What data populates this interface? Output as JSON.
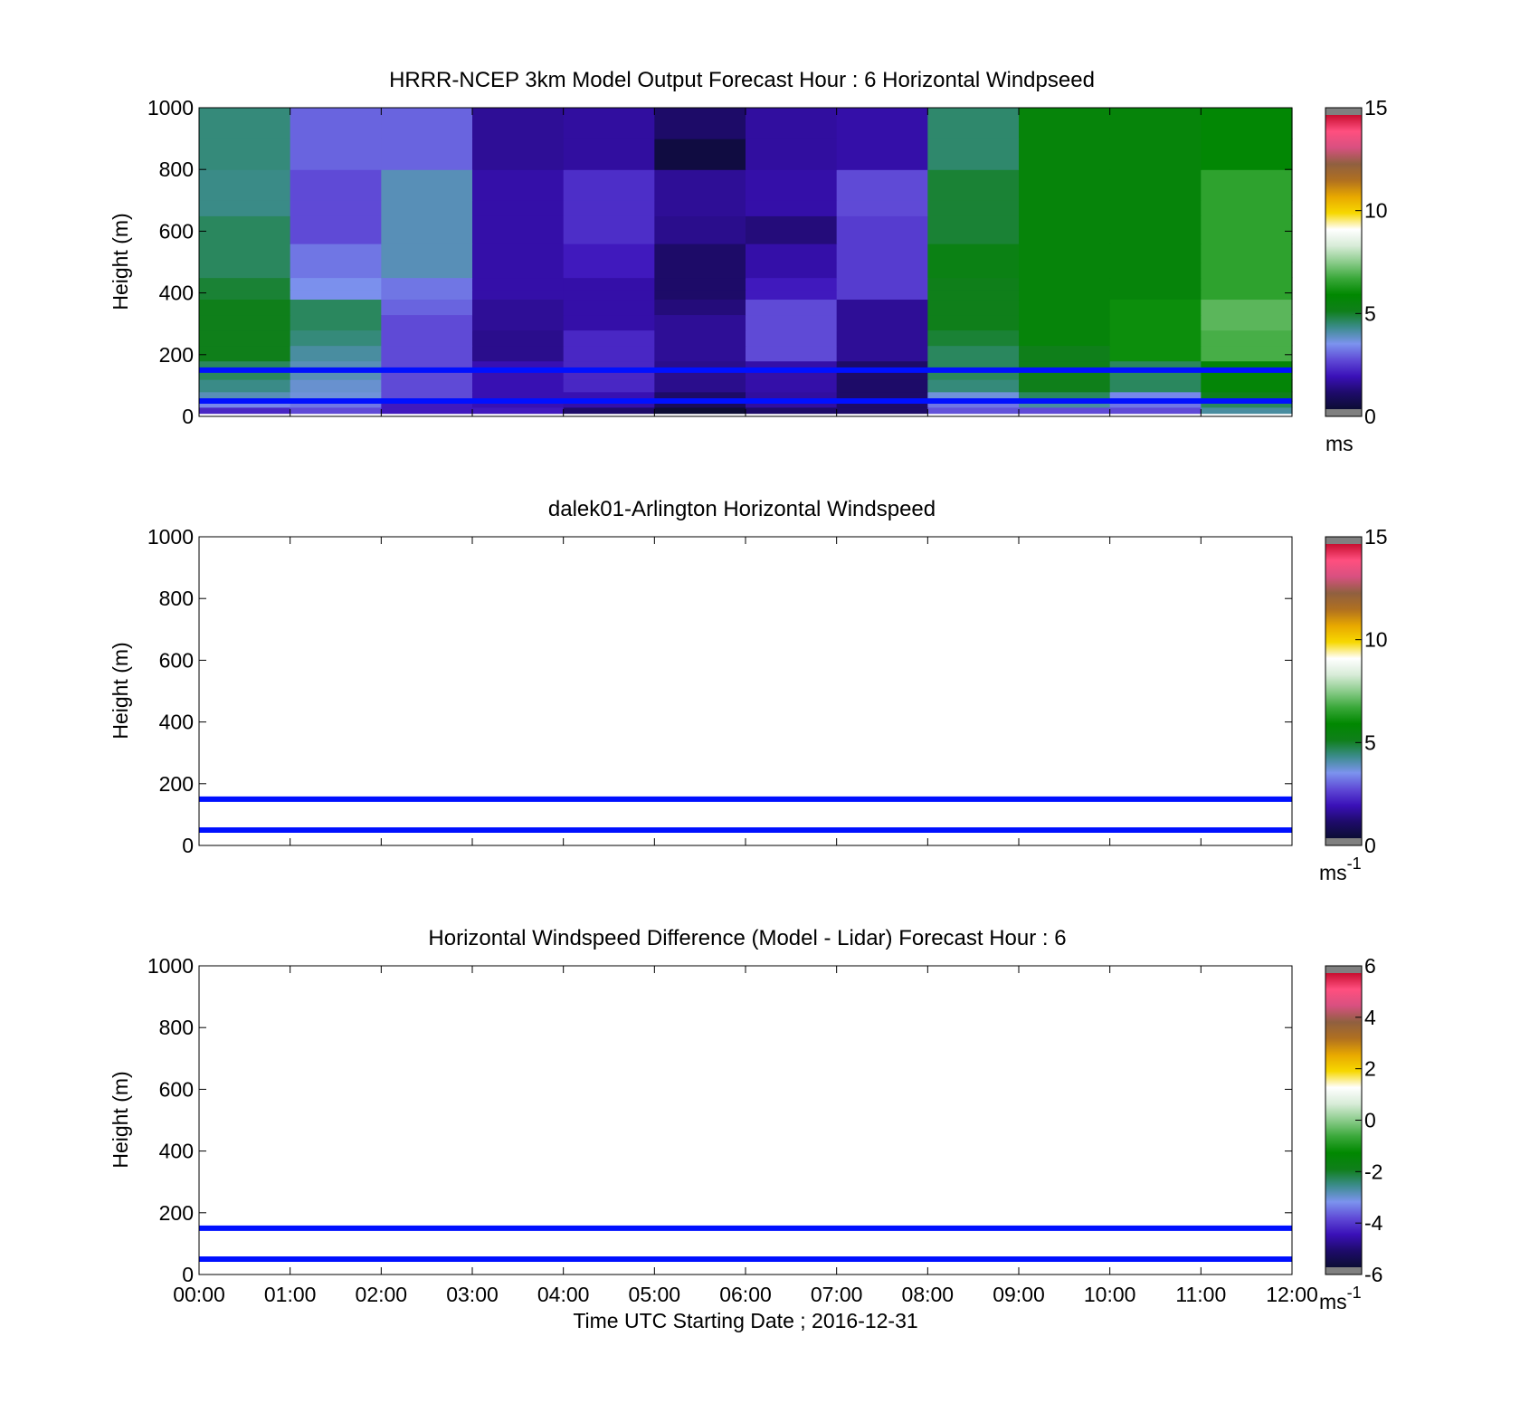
{
  "chart_data": [
    {
      "type": "heatmap",
      "title": "HRRR-NCEP 3km Model Output   Forecast Hour : 6 Horizontal Windpseed",
      "xlabel": "",
      "ylabel": "Height (m)",
      "xlim": [
        0,
        12
      ],
      "ylim": [
        0,
        1000
      ],
      "x_ticks": [
        0,
        1,
        2,
        3,
        4,
        5,
        6,
        7,
        8,
        9,
        10,
        11,
        12
      ],
      "x_tick_labels": [],
      "y_ticks": [
        0,
        200,
        400,
        600,
        800,
        1000
      ],
      "y_tick_labels": [
        "0",
        "200",
        "400",
        "600",
        "800",
        "1000"
      ],
      "colorbar": {
        "min": 0,
        "max": 15,
        "ticks": [
          0,
          5,
          10,
          15
        ],
        "tick_labels": [
          "0",
          "5",
          "10",
          "15"
        ],
        "units": "ms",
        "units_sup": "",
        "colors": [
          "#808080",
          "#0c0c34",
          "#1e0b6a",
          "#3a10b8",
          "#5f4ad6",
          "#7c93ee",
          "#3c8c8c",
          "#0f7f1a",
          "#008800",
          "#3aa83a",
          "#8ccc8c",
          "#d8ecd8",
          "#ffffff",
          "#f7d800",
          "#e8a800",
          "#b07020",
          "#906040",
          "#d85080",
          "#ff4f7f",
          "#c80f30",
          "#808080"
        ]
      },
      "reference_lines": [
        50,
        150
      ],
      "grid": false,
      "x_edges": [
        0,
        1,
        2,
        3,
        4,
        5,
        6,
        7,
        8,
        9,
        10,
        11,
        12
      ],
      "y_edges": [
        10,
        30,
        50,
        80,
        120,
        180,
        230,
        280,
        330,
        380,
        410,
        450,
        500,
        560,
        600,
        650,
        700,
        800,
        900,
        1000
      ],
      "z": [
        [
          2,
          2.5,
          1.8,
          1.8,
          0.8,
          0,
          0.8,
          0.8,
          2.6,
          2.5,
          2.5,
          4
        ],
        [
          3.2,
          3,
          1.8,
          1.6,
          1.5,
          0.6,
          1.4,
          0.8,
          3,
          4,
          3,
          4.5
        ],
        [
          3.8,
          3.5,
          2.5,
          1.6,
          1.6,
          0.8,
          1.4,
          0.8,
          3.5,
          4.5,
          3.2,
          5
        ],
        [
          4.2,
          3.6,
          2.5,
          1.6,
          2,
          1.2,
          1.5,
          0.8,
          4.3,
          5,
          4.5,
          5.6
        ],
        [
          4.5,
          3.8,
          2.5,
          1.6,
          2,
          1.2,
          1.5,
          0.8,
          4.5,
          5,
          4.5,
          5.6
        ],
        [
          5,
          4,
          2.5,
          1.2,
          2,
          1.3,
          2.5,
          1.3,
          4.5,
          5,
          6,
          6.8
        ],
        [
          5,
          4.3,
          2.5,
          1.2,
          2,
          1.3,
          2.5,
          1.3,
          4.8,
          5.5,
          6,
          6.8
        ],
        [
          5,
          4.5,
          2.5,
          1.3,
          1.5,
          1.3,
          2.5,
          1.3,
          5,
          5.5,
          6,
          7
        ],
        [
          5,
          4.5,
          2.8,
          1.3,
          1.5,
          1,
          2.5,
          1.3,
          5,
          5.5,
          6,
          7
        ],
        [
          4.8,
          3.3,
          3,
          1.5,
          1.5,
          0.8,
          1.8,
          2.3,
          5,
          5.5,
          5.5,
          6.5
        ],
        [
          4.8,
          3.3,
          3,
          1.5,
          1.5,
          0.8,
          1.8,
          2.3,
          5,
          5.5,
          5.5,
          6.5
        ],
        [
          4.5,
          3,
          3.8,
          1.5,
          1.8,
          0.8,
          1.5,
          2.3,
          5.2,
          5.5,
          5.5,
          6.5
        ],
        [
          4.5,
          3,
          3.8,
          1.5,
          1.8,
          0.8,
          1.5,
          2.3,
          5.2,
          5.5,
          5.5,
          6.5
        ],
        [
          4.5,
          2.5,
          3.8,
          1.5,
          2.1,
          1.2,
          1.0,
          2.3,
          4.8,
          5.5,
          5.5,
          6.5
        ],
        [
          4.5,
          2.5,
          3.8,
          1.5,
          2.1,
          1.2,
          1.0,
          2.3,
          4.8,
          5.5,
          5.5,
          6.5
        ],
        [
          4.2,
          2.5,
          3.8,
          1.5,
          2.1,
          1.3,
          1.5,
          2.5,
          4.8,
          5.5,
          5.5,
          6.5
        ],
        [
          4.2,
          2.5,
          3.8,
          1.5,
          2.1,
          1.3,
          1.5,
          2.5,
          4.8,
          5.5,
          5.5,
          6.5
        ],
        [
          4.3,
          2.8,
          2.8,
          1.3,
          1.4,
          0.2,
          1.4,
          1.5,
          4.4,
          5.5,
          5.5,
          5.7
        ],
        [
          4.3,
          2.8,
          2.8,
          1.3,
          1.4,
          0.8,
          1.4,
          1.5,
          4.4,
          5.5,
          5.5,
          5.7
        ]
      ]
    },
    {
      "type": "heatmap",
      "title": "dalek01-Arlington  Horizontal Windspeed",
      "xlabel": "",
      "ylabel": "Height (m)",
      "xlim": [
        0,
        12
      ],
      "ylim": [
        0,
        1000
      ],
      "x_ticks": [
        0,
        1,
        2,
        3,
        4,
        5,
        6,
        7,
        8,
        9,
        10,
        11,
        12
      ],
      "x_tick_labels": [],
      "y_ticks": [
        0,
        200,
        400,
        600,
        800,
        1000
      ],
      "y_tick_labels": [
        "0",
        "200",
        "400",
        "600",
        "800",
        "1000"
      ],
      "colorbar": {
        "min": 0,
        "max": 15,
        "ticks": [
          0,
          5,
          10,
          15
        ],
        "tick_labels": [
          "0",
          "5",
          "10",
          "15"
        ],
        "units": "ms",
        "units_sup": "-1",
        "colors": [
          "#808080",
          "#0c0c34",
          "#1e0b6a",
          "#3a10b8",
          "#5f4ad6",
          "#7c93ee",
          "#3c8c8c",
          "#0f7f1a",
          "#008800",
          "#3aa83a",
          "#8ccc8c",
          "#d8ecd8",
          "#ffffff",
          "#f7d800",
          "#e8a800",
          "#b07020",
          "#906040",
          "#d85080",
          "#ff4f7f",
          "#c80f30",
          "#808080"
        ]
      },
      "reference_lines": [
        50,
        150
      ],
      "grid": false,
      "x_edges": [],
      "y_edges": [],
      "z": []
    },
    {
      "type": "heatmap",
      "title": "Horizontal Windspeed Difference (Model - Lidar) Forecast Hour : 6",
      "xlabel": "Time UTC  Starting Date ; 2016-12-31",
      "ylabel": "Height (m)",
      "xlim": [
        0,
        12
      ],
      "ylim": [
        0,
        1000
      ],
      "x_ticks": [
        0,
        1,
        2,
        3,
        4,
        5,
        6,
        7,
        8,
        9,
        10,
        11,
        12
      ],
      "x_tick_labels": [
        "00:00",
        "01:00",
        "02:00",
        "03:00",
        "04:00",
        "05:00",
        "06:00",
        "07:00",
        "08:00",
        "09:00",
        "10:00",
        "11:00",
        "12:00"
      ],
      "y_ticks": [
        0,
        200,
        400,
        600,
        800,
        1000
      ],
      "y_tick_labels": [
        "0",
        "200",
        "400",
        "600",
        "800",
        "1000"
      ],
      "colorbar": {
        "min": -6,
        "max": 6,
        "ticks": [
          -6,
          -4,
          -2,
          0,
          2,
          4,
          6
        ],
        "tick_labels": [
          "-6",
          "-4",
          "-2",
          "0",
          "2",
          "4",
          "6"
        ],
        "units": "ms",
        "units_sup": "-1",
        "colors": [
          "#808080",
          "#0c0c34",
          "#1e0b6a",
          "#3a10b8",
          "#5f4ad6",
          "#7c93ee",
          "#3c8c8c",
          "#0f7f1a",
          "#008800",
          "#3aa83a",
          "#8ccc8c",
          "#d8ecd8",
          "#ffffff",
          "#f7d800",
          "#e8a800",
          "#b07020",
          "#906040",
          "#d85080",
          "#ff4f7f",
          "#c80f30",
          "#808080"
        ]
      },
      "reference_lines": [
        50,
        150
      ],
      "grid": false,
      "x_edges": [],
      "y_edges": [],
      "z": []
    }
  ]
}
